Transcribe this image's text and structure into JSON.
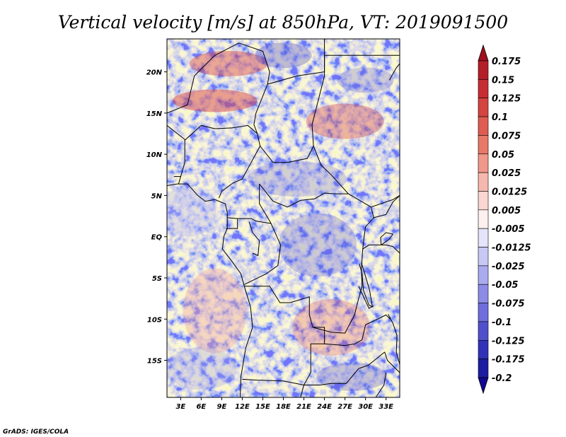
{
  "chart_data": {
    "type": "heatmap",
    "title": "Vertical velocity [m/s] at 850hPa, VT: 2019091500",
    "variable": "Vertical velocity",
    "units": "m/s",
    "level": "850hPa",
    "valid_time": "2019091500",
    "x_ticks": [
      "3E",
      "6E",
      "9E",
      "12E",
      "15E",
      "18E",
      "21E",
      "24E",
      "27E",
      "30E",
      "33E"
    ],
    "y_ticks": [
      "20N",
      "15N",
      "10N",
      "5N",
      "EQ",
      "5S",
      "10S",
      "15S"
    ],
    "x_range_deg": [
      1,
      35
    ],
    "y_range_deg": [
      -19.5,
      24
    ],
    "colorbar": {
      "labels": [
        "0.175",
        "0.15",
        "0.125",
        "0.1",
        "0.075",
        "0.05",
        "0.025",
        "0.0125",
        "0.005",
        "-0.005",
        "-0.0125",
        "-0.025",
        "-0.05",
        "-0.075",
        "-0.1",
        "-0.125",
        "-0.175",
        "-0.2"
      ],
      "colors": [
        "#a01020",
        "#b41e28",
        "#c62e34",
        "#d44440",
        "#de5c52",
        "#e87868",
        "#f0988a",
        "#f6b8ae",
        "#fbd6d0",
        "#fdf0ee",
        "#e4e4fa",
        "#c8c8f4",
        "#aaaaee",
        "#8c8ce6",
        "#6e6edc",
        "#5050cc",
        "#3232b8",
        "#1c1ca0",
        "#100890"
      ]
    },
    "legend": "right"
  },
  "footer": {
    "credit": "GrADS: IGES/COLA"
  }
}
